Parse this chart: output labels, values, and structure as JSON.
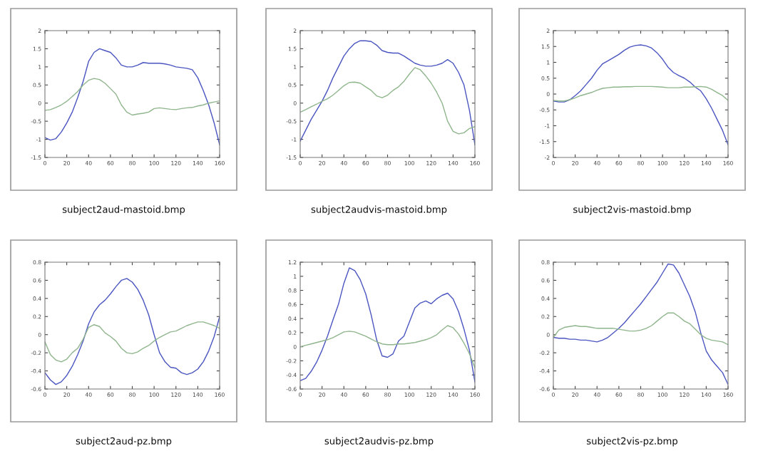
{
  "chart_data": [
    {
      "type": "line",
      "title": "subject2aud-mastoid.bmp",
      "x": [
        0,
        5,
        10,
        15,
        20,
        25,
        30,
        35,
        40,
        45,
        50,
        55,
        60,
        65,
        70,
        75,
        80,
        85,
        90,
        95,
        100,
        105,
        110,
        115,
        120,
        125,
        130,
        135,
        140,
        145,
        150,
        155,
        160
      ],
      "xlim": [
        0,
        160
      ],
      "xticks": [
        0,
        20,
        40,
        60,
        80,
        100,
        120,
        140,
        160
      ],
      "ylim": [
        -1.5,
        2
      ],
      "yticks": [
        -1.5,
        -1,
        -0.5,
        0,
        0.5,
        1,
        1.5,
        2
      ],
      "grid": false,
      "marker": "none",
      "line_style": "solid",
      "series": [
        {
          "color": "#4a55c0",
          "values": [
            -0.95,
            -1.02,
            -0.98,
            -0.8,
            -0.55,
            -0.25,
            0.15,
            0.6,
            1.15,
            1.4,
            1.5,
            1.45,
            1.4,
            1.25,
            1.05,
            1.0,
            1.0,
            1.05,
            1.12,
            1.1,
            1.1,
            1.1,
            1.08,
            1.05,
            1.0,
            0.98,
            0.96,
            0.92,
            0.7,
            0.35,
            -0.05,
            -0.55,
            -1.15
          ]
        },
        {
          "color": "#8fb58c",
          "values": [
            -0.2,
            -0.18,
            -0.12,
            -0.05,
            0.05,
            0.18,
            0.32,
            0.5,
            0.63,
            0.68,
            0.65,
            0.55,
            0.4,
            0.25,
            -0.05,
            -0.25,
            -0.33,
            -0.3,
            -0.28,
            -0.25,
            -0.15,
            -0.13,
            -0.15,
            -0.17,
            -0.18,
            -0.15,
            -0.13,
            -0.12,
            -0.08,
            -0.05,
            0.0,
            0.03,
            0.06
          ]
        }
      ]
    },
    {
      "type": "line",
      "title": "subject2audvis-mastoid.bmp",
      "x": [
        0,
        5,
        10,
        15,
        20,
        25,
        30,
        35,
        40,
        45,
        50,
        55,
        60,
        65,
        70,
        75,
        80,
        85,
        90,
        95,
        100,
        105,
        110,
        115,
        120,
        125,
        130,
        135,
        140,
        145,
        150,
        155,
        160
      ],
      "xlim": [
        0,
        160
      ],
      "xticks": [
        0,
        20,
        40,
        60,
        80,
        100,
        120,
        140,
        160
      ],
      "ylim": [
        -1.5,
        2
      ],
      "yticks": [
        -1.5,
        -1,
        -0.5,
        0,
        0.5,
        1,
        1.5,
        2
      ],
      "grid": false,
      "marker": "none",
      "line_style": "solid",
      "series": [
        {
          "color": "#4a55c0",
          "values": [
            -1.05,
            -0.75,
            -0.45,
            -0.2,
            0.05,
            0.35,
            0.7,
            1.0,
            1.3,
            1.5,
            1.65,
            1.72,
            1.72,
            1.7,
            1.6,
            1.45,
            1.4,
            1.38,
            1.38,
            1.3,
            1.2,
            1.1,
            1.05,
            1.02,
            1.02,
            1.05,
            1.1,
            1.2,
            1.1,
            0.85,
            0.5,
            -0.2,
            -1.15
          ]
        },
        {
          "color": "#8fb58c",
          "values": [
            -0.25,
            -0.18,
            -0.1,
            -0.03,
            0.05,
            0.12,
            0.22,
            0.35,
            0.48,
            0.57,
            0.58,
            0.55,
            0.45,
            0.35,
            0.2,
            0.15,
            0.22,
            0.35,
            0.45,
            0.6,
            0.8,
            0.98,
            0.92,
            0.75,
            0.55,
            0.3,
            0.0,
            -0.5,
            -0.78,
            -0.85,
            -0.82,
            -0.7,
            -0.65
          ]
        }
      ]
    },
    {
      "type": "line",
      "title": "subject2vis-mastoid.bmp",
      "x": [
        0,
        5,
        10,
        15,
        20,
        25,
        30,
        35,
        40,
        45,
        50,
        55,
        60,
        65,
        70,
        75,
        80,
        85,
        90,
        95,
        100,
        105,
        110,
        115,
        120,
        125,
        130,
        135,
        140,
        145,
        150,
        155,
        160
      ],
      "xlim": [
        0,
        160
      ],
      "xticks": [
        0,
        20,
        40,
        60,
        80,
        100,
        120,
        140,
        160
      ],
      "ylim": [
        -2,
        2
      ],
      "yticks": [
        -2,
        -1.5,
        -1,
        -0.5,
        0,
        0.5,
        1,
        1.5,
        2
      ],
      "grid": false,
      "marker": "none",
      "line_style": "solid",
      "series": [
        {
          "color": "#4a55c0",
          "values": [
            -0.22,
            -0.25,
            -0.25,
            -0.18,
            -0.05,
            0.1,
            0.3,
            0.5,
            0.75,
            0.95,
            1.05,
            1.15,
            1.25,
            1.38,
            1.48,
            1.53,
            1.55,
            1.52,
            1.45,
            1.3,
            1.1,
            0.85,
            0.68,
            0.58,
            0.5,
            0.38,
            0.22,
            0.1,
            -0.15,
            -0.45,
            -0.8,
            -1.15,
            -1.6
          ]
        },
        {
          "color": "#8fb58c",
          "values": [
            -0.2,
            -0.22,
            -0.22,
            -0.18,
            -0.12,
            -0.05,
            0.0,
            0.05,
            0.12,
            0.18,
            0.2,
            0.22,
            0.22,
            0.23,
            0.23,
            0.24,
            0.24,
            0.24,
            0.24,
            0.23,
            0.22,
            0.2,
            0.2,
            0.2,
            0.22,
            0.22,
            0.23,
            0.24,
            0.22,
            0.15,
            0.05,
            -0.05,
            -0.2
          ]
        }
      ]
    },
    {
      "type": "line",
      "title": "subject2aud-pz.bmp",
      "x": [
        0,
        5,
        10,
        15,
        20,
        25,
        30,
        35,
        40,
        45,
        50,
        55,
        60,
        65,
        70,
        75,
        80,
        85,
        90,
        95,
        100,
        105,
        110,
        115,
        120,
        125,
        130,
        135,
        140,
        145,
        150,
        155,
        160
      ],
      "xlim": [
        0,
        160
      ],
      "xticks": [
        0,
        20,
        40,
        60,
        80,
        100,
        120,
        140,
        160
      ],
      "ylim": [
        -0.6,
        0.8
      ],
      "yticks": [
        -0.6,
        -0.4,
        -0.2,
        0,
        0.2,
        0.4,
        0.6,
        0.8
      ],
      "grid": false,
      "marker": "none",
      "line_style": "solid",
      "series": [
        {
          "color": "#4a55c0",
          "values": [
            -0.42,
            -0.5,
            -0.55,
            -0.52,
            -0.45,
            -0.35,
            -0.22,
            -0.07,
            0.12,
            0.25,
            0.33,
            0.38,
            0.45,
            0.53,
            0.6,
            0.62,
            0.58,
            0.5,
            0.38,
            0.22,
            0.0,
            -0.2,
            -0.3,
            -0.36,
            -0.37,
            -0.42,
            -0.44,
            -0.42,
            -0.38,
            -0.3,
            -0.18,
            -0.02,
            0.2
          ]
        },
        {
          "color": "#8fb58c",
          "values": [
            -0.08,
            -0.22,
            -0.28,
            -0.3,
            -0.27,
            -0.2,
            -0.15,
            -0.05,
            0.08,
            0.11,
            0.09,
            0.02,
            -0.02,
            -0.07,
            -0.15,
            -0.2,
            -0.21,
            -0.19,
            -0.15,
            -0.12,
            -0.07,
            -0.03,
            0.0,
            0.03,
            0.04,
            0.07,
            0.1,
            0.12,
            0.14,
            0.14,
            0.12,
            0.1,
            0.07
          ]
        }
      ]
    },
    {
      "type": "line",
      "title": "subject2audvis-pz.bmp",
      "x": [
        0,
        5,
        10,
        15,
        20,
        25,
        30,
        35,
        40,
        45,
        50,
        55,
        60,
        65,
        70,
        75,
        80,
        85,
        90,
        95,
        100,
        105,
        110,
        115,
        120,
        125,
        130,
        135,
        140,
        145,
        150,
        155,
        160
      ],
      "xlim": [
        0,
        160
      ],
      "xticks": [
        0,
        20,
        40,
        60,
        80,
        100,
        120,
        140,
        160
      ],
      "ylim": [
        -0.6,
        1.2
      ],
      "yticks": [
        -0.6,
        -0.4,
        -0.2,
        0,
        0.2,
        0.4,
        0.6,
        0.8,
        1,
        1.2
      ],
      "grid": false,
      "marker": "none",
      "line_style": "solid",
      "series": [
        {
          "color": "#4a55c0",
          "values": [
            -0.48,
            -0.45,
            -0.35,
            -0.22,
            -0.05,
            0.15,
            0.38,
            0.6,
            0.9,
            1.12,
            1.08,
            0.95,
            0.75,
            0.45,
            0.1,
            -0.13,
            -0.15,
            -0.1,
            0.08,
            0.15,
            0.35,
            0.55,
            0.62,
            0.65,
            0.61,
            0.68,
            0.73,
            0.76,
            0.68,
            0.5,
            0.25,
            -0.05,
            -0.5
          ]
        },
        {
          "color": "#8fb58c",
          "values": [
            0.0,
            0.02,
            0.04,
            0.06,
            0.08,
            0.1,
            0.13,
            0.17,
            0.21,
            0.22,
            0.21,
            0.18,
            0.15,
            0.11,
            0.07,
            0.04,
            0.03,
            0.03,
            0.04,
            0.04,
            0.05,
            0.06,
            0.08,
            0.1,
            0.13,
            0.17,
            0.24,
            0.3,
            0.27,
            0.18,
            0.05,
            -0.1,
            -0.3
          ]
        }
      ]
    },
    {
      "type": "line",
      "title": "subject2vis-pz.bmp",
      "x": [
        0,
        5,
        10,
        15,
        20,
        25,
        30,
        35,
        40,
        45,
        50,
        55,
        60,
        65,
        70,
        75,
        80,
        85,
        90,
        95,
        100,
        105,
        110,
        115,
        120,
        125,
        130,
        135,
        140,
        145,
        150,
        155,
        160
      ],
      "xlim": [
        0,
        160
      ],
      "xticks": [
        0,
        20,
        40,
        60,
        80,
        100,
        120,
        140,
        160
      ],
      "ylim": [
        -0.6,
        0.8
      ],
      "yticks": [
        -0.6,
        -0.4,
        -0.2,
        0,
        0.2,
        0.4,
        0.6,
        0.8
      ],
      "grid": false,
      "marker": "none",
      "line_style": "solid",
      "series": [
        {
          "color": "#4a55c0",
          "values": [
            -0.03,
            -0.04,
            -0.04,
            -0.05,
            -0.05,
            -0.06,
            -0.06,
            -0.07,
            -0.08,
            -0.06,
            -0.03,
            0.02,
            0.07,
            0.13,
            0.2,
            0.27,
            0.34,
            0.42,
            0.5,
            0.58,
            0.68,
            0.78,
            0.77,
            0.68,
            0.55,
            0.42,
            0.25,
            0.02,
            -0.18,
            -0.28,
            -0.35,
            -0.42,
            -0.55
          ]
        },
        {
          "color": "#8fb58c",
          "values": [
            -0.03,
            0.05,
            0.08,
            0.09,
            0.1,
            0.09,
            0.09,
            0.08,
            0.07,
            0.07,
            0.07,
            0.07,
            0.06,
            0.05,
            0.04,
            0.04,
            0.05,
            0.07,
            0.1,
            0.15,
            0.2,
            0.24,
            0.24,
            0.2,
            0.15,
            0.12,
            0.06,
            0.0,
            -0.04,
            -0.06,
            -0.07,
            -0.08,
            -0.11
          ]
        }
      ]
    }
  ]
}
